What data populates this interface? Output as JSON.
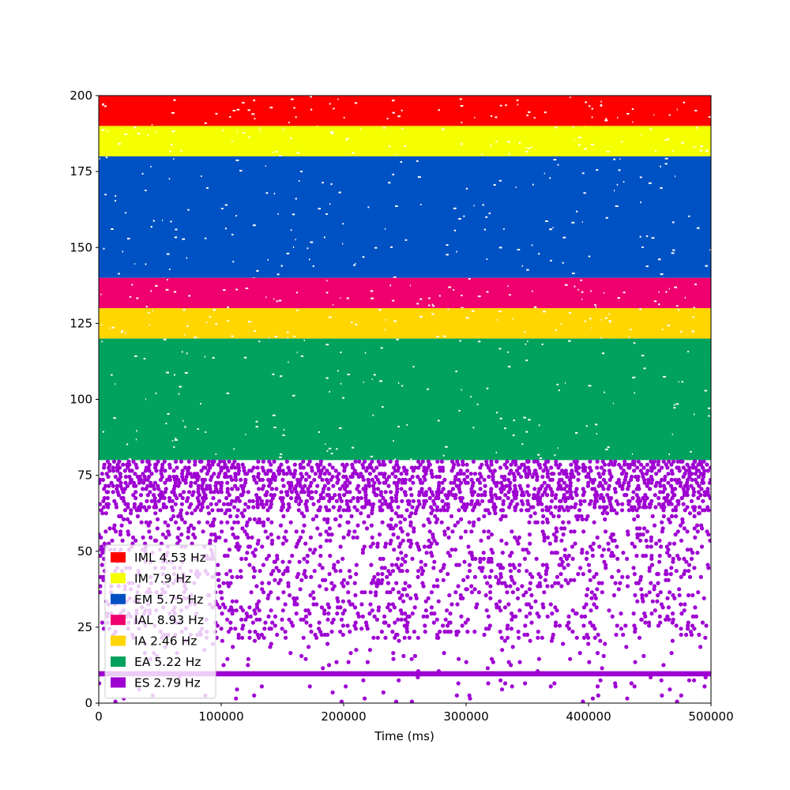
{
  "chart_data": {
    "type": "scatter",
    "title": "",
    "xlabel": "Time (ms)",
    "ylabel": "",
    "xlim": [
      0,
      500000
    ],
    "ylim": [
      0,
      200
    ],
    "x_ticks": [
      0,
      100000,
      200000,
      300000,
      400000,
      500000
    ],
    "x_tick_labels": [
      "0",
      "100000",
      "200000",
      "300000",
      "400000",
      "500000"
    ],
    "y_ticks": [
      0,
      25,
      50,
      75,
      100,
      125,
      150,
      175,
      200
    ],
    "y_tick_labels": [
      "0",
      "25",
      "50",
      "75",
      "100",
      "125",
      "150",
      "175",
      "200"
    ],
    "grid": false,
    "legend_placement": "lower-left",
    "series": [
      {
        "name": "IML 4.53 Hz",
        "color": "#ff0000",
        "neuron_range": [
          190,
          200
        ],
        "density": "dense"
      },
      {
        "name": "IM 7.9 Hz",
        "color": "#f5ff00",
        "neuron_range": [
          180,
          190
        ],
        "density": "dense"
      },
      {
        "name": "EM 5.75 Hz",
        "color": "#0052c4",
        "neuron_range": [
          140,
          180
        ],
        "density": "dense"
      },
      {
        "name": "IAL 8.93 Hz",
        "color": "#f0006e",
        "neuron_range": [
          130,
          140
        ],
        "density": "dense"
      },
      {
        "name": "IA 2.46 Hz",
        "color": "#ffd600",
        "neuron_range": [
          120,
          130
        ],
        "density": "dense"
      },
      {
        "name": "EA 5.22 Hz",
        "color": "#00a25e",
        "neuron_range": [
          80,
          120
        ],
        "density": "dense"
      },
      {
        "name": "ES 2.79 Hz",
        "color": "#9e00d2",
        "neuron_range": [
          0,
          80
        ],
        "density": "sparse"
      }
    ]
  }
}
